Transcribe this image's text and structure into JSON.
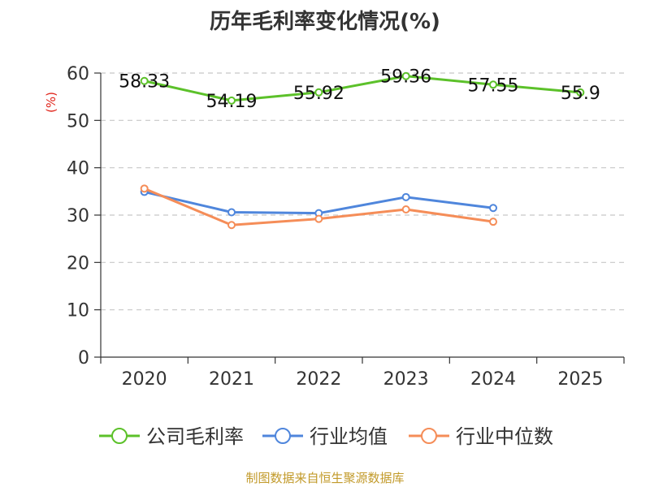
{
  "chart_data": {
    "type": "line",
    "title": "历年毛利率变化情况(%)",
    "xlabel": "",
    "ylabel": "(%)",
    "categories": [
      "2020",
      "2021",
      "2022",
      "2023",
      "2024",
      "2025"
    ],
    "ylim": [
      0,
      60
    ],
    "yticks": [
      0,
      10,
      20,
      30,
      40,
      50,
      60
    ],
    "grid": true,
    "legend_position": "bottom",
    "series": [
      {
        "name": "公司毛利率",
        "color": "#5cc12a",
        "values": [
          58.33,
          54.19,
          55.92,
          59.36,
          57.55,
          55.9
        ],
        "labels": [
          "58.33",
          "54.19",
          "55.92",
          "59.36",
          "57.55",
          "55.9"
        ],
        "show_labels": true
      },
      {
        "name": "行业均值",
        "color": "#4f86dc",
        "values": [
          34.9,
          30.6,
          30.4,
          33.8,
          31.5,
          null
        ],
        "show_labels": false
      },
      {
        "name": "行业中位数",
        "color": "#f58d58",
        "values": [
          35.6,
          27.9,
          29.2,
          31.2,
          28.6,
          null
        ],
        "show_labels": false
      }
    ]
  },
  "source_text": "制图数据来自恒生聚源数据库"
}
